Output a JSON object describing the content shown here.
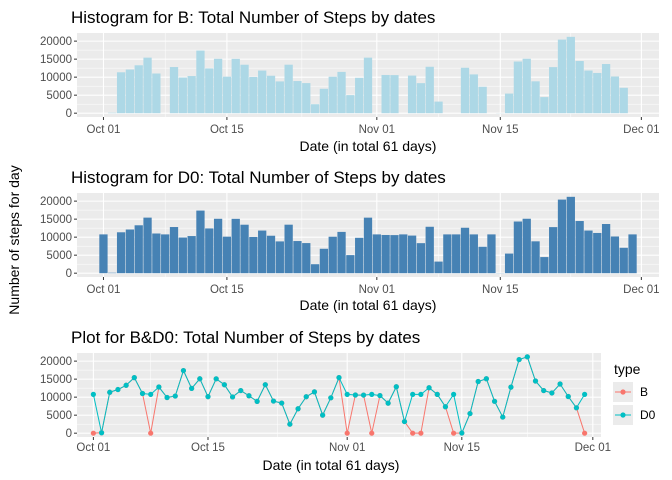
{
  "chart_data": [
    {
      "type": "bar",
      "title": "Histogram for B: Total Number of Steps by dates",
      "xlabel": "Date (in total 61 days)",
      "ylabel": "Number of steps for day",
      "bar_color": "#add8e6",
      "x": [
        "2012-10-01",
        "2012-10-02",
        "2012-10-03",
        "2012-10-04",
        "2012-10-05",
        "2012-10-06",
        "2012-10-07",
        "2012-10-08",
        "2012-10-09",
        "2012-10-10",
        "2012-10-11",
        "2012-10-12",
        "2012-10-13",
        "2012-10-14",
        "2012-10-15",
        "2012-10-16",
        "2012-10-17",
        "2012-10-18",
        "2012-10-19",
        "2012-10-20",
        "2012-10-21",
        "2012-10-22",
        "2012-10-23",
        "2012-10-24",
        "2012-10-25",
        "2012-10-26",
        "2012-10-27",
        "2012-10-28",
        "2012-10-29",
        "2012-10-30",
        "2012-10-31",
        "2012-11-01",
        "2012-11-02",
        "2012-11-03",
        "2012-11-04",
        "2012-11-05",
        "2012-11-06",
        "2012-11-07",
        "2012-11-08",
        "2012-11-09",
        "2012-11-10",
        "2012-11-11",
        "2012-11-12",
        "2012-11-13",
        "2012-11-14",
        "2012-11-15",
        "2012-11-16",
        "2012-11-17",
        "2012-11-18",
        "2012-11-19",
        "2012-11-20",
        "2012-11-21",
        "2012-11-22",
        "2012-11-23",
        "2012-11-24",
        "2012-11-25",
        "2012-11-26",
        "2012-11-27",
        "2012-11-28",
        "2012-11-29",
        "2012-11-30"
      ],
      "values": [
        0,
        126,
        11352,
        12116,
        13294,
        15420,
        11015,
        0,
        12811,
        9900,
        10304,
        17382,
        12426,
        15098,
        10139,
        15084,
        13452,
        10056,
        11829,
        10395,
        8821,
        13460,
        8918,
        8355,
        2492,
        6778,
        10119,
        11458,
        5018,
        9819,
        15414,
        0,
        10600,
        10571,
        0,
        10439,
        8334,
        12883,
        3219,
        0,
        0,
        12608,
        10765,
        7336,
        0,
        41,
        5441,
        14339,
        15110,
        8841,
        4472,
        12787,
        20427,
        21194,
        14478,
        11834,
        11162,
        13646,
        10183,
        7047,
        0
      ],
      "yticks": [
        0,
        5000,
        10000,
        15000,
        20000
      ],
      "xticks": [
        {
          "date": "2012-10-01",
          "label": "Oct 01"
        },
        {
          "date": "2012-10-15",
          "label": "Oct 15"
        },
        {
          "date": "2012-11-01",
          "label": "Nov 01"
        },
        {
          "date": "2012-11-15",
          "label": "Nov 15"
        },
        {
          "date": "2012-12-01",
          "label": "Dec 01"
        }
      ],
      "ylim": [
        0,
        21194
      ]
    },
    {
      "type": "bar",
      "title": "Histogram for D0: Total Number of Steps by dates",
      "xlabel": "Date (in total 61 days)",
      "ylabel": "Number of steps for day",
      "bar_color": "#4682b4",
      "x": [
        "2012-10-01",
        "2012-10-02",
        "2012-10-03",
        "2012-10-04",
        "2012-10-05",
        "2012-10-06",
        "2012-10-07",
        "2012-10-08",
        "2012-10-09",
        "2012-10-10",
        "2012-10-11",
        "2012-10-12",
        "2012-10-13",
        "2012-10-14",
        "2012-10-15",
        "2012-10-16",
        "2012-10-17",
        "2012-10-18",
        "2012-10-19",
        "2012-10-20",
        "2012-10-21",
        "2012-10-22",
        "2012-10-23",
        "2012-10-24",
        "2012-10-25",
        "2012-10-26",
        "2012-10-27",
        "2012-10-28",
        "2012-10-29",
        "2012-10-30",
        "2012-10-31",
        "2012-11-01",
        "2012-11-02",
        "2012-11-03",
        "2012-11-04",
        "2012-11-05",
        "2012-11-06",
        "2012-11-07",
        "2012-11-08",
        "2012-11-09",
        "2012-11-10",
        "2012-11-11",
        "2012-11-12",
        "2012-11-13",
        "2012-11-14",
        "2012-11-15",
        "2012-11-16",
        "2012-11-17",
        "2012-11-18",
        "2012-11-19",
        "2012-11-20",
        "2012-11-21",
        "2012-11-22",
        "2012-11-23",
        "2012-11-24",
        "2012-11-25",
        "2012-11-26",
        "2012-11-27",
        "2012-11-28",
        "2012-11-29",
        "2012-11-30"
      ],
      "values": [
        10766,
        126,
        11352,
        12116,
        13294,
        15420,
        11015,
        10766,
        12811,
        9900,
        10304,
        17382,
        12426,
        15098,
        10139,
        15084,
        13452,
        10056,
        11829,
        10395,
        8821,
        13460,
        8918,
        8355,
        2492,
        6778,
        10119,
        11458,
        5018,
        9819,
        15414,
        10766,
        10600,
        10571,
        10766,
        10439,
        8334,
        12883,
        3219,
        10766,
        10766,
        12608,
        10765,
        7336,
        10766,
        41,
        5441,
        14339,
        15110,
        8841,
        4472,
        12787,
        20427,
        21194,
        14478,
        11834,
        11162,
        13646,
        10183,
        7047,
        10766
      ],
      "yticks": [
        0,
        5000,
        10000,
        15000,
        20000
      ],
      "xticks": [
        {
          "date": "2012-10-01",
          "label": "Oct 01"
        },
        {
          "date": "2012-10-15",
          "label": "Oct 15"
        },
        {
          "date": "2012-11-01",
          "label": "Nov 01"
        },
        {
          "date": "2012-11-15",
          "label": "Nov 15"
        },
        {
          "date": "2012-12-01",
          "label": "Dec 01"
        }
      ],
      "ylim": [
        0,
        21194
      ]
    },
    {
      "type": "line",
      "title": "Plot for B&D0: Total Number of Steps by dates",
      "xlabel": "Date (in total 61 days)",
      "ylabel": "Number of steps for day",
      "legend": {
        "title": "type",
        "position": "right"
      },
      "x": [
        "2012-10-01",
        "2012-10-02",
        "2012-10-03",
        "2012-10-04",
        "2012-10-05",
        "2012-10-06",
        "2012-10-07",
        "2012-10-08",
        "2012-10-09",
        "2012-10-10",
        "2012-10-11",
        "2012-10-12",
        "2012-10-13",
        "2012-10-14",
        "2012-10-15",
        "2012-10-16",
        "2012-10-17",
        "2012-10-18",
        "2012-10-19",
        "2012-10-20",
        "2012-10-21",
        "2012-10-22",
        "2012-10-23",
        "2012-10-24",
        "2012-10-25",
        "2012-10-26",
        "2012-10-27",
        "2012-10-28",
        "2012-10-29",
        "2012-10-30",
        "2012-10-31",
        "2012-11-01",
        "2012-11-02",
        "2012-11-03",
        "2012-11-04",
        "2012-11-05",
        "2012-11-06",
        "2012-11-07",
        "2012-11-08",
        "2012-11-09",
        "2012-11-10",
        "2012-11-11",
        "2012-11-12",
        "2012-11-13",
        "2012-11-14",
        "2012-11-15",
        "2012-11-16",
        "2012-11-17",
        "2012-11-18",
        "2012-11-19",
        "2012-11-20",
        "2012-11-21",
        "2012-11-22",
        "2012-11-23",
        "2012-11-24",
        "2012-11-25",
        "2012-11-26",
        "2012-11-27",
        "2012-11-28",
        "2012-11-29",
        "2012-11-30"
      ],
      "series": [
        {
          "name": "B",
          "color": "#f8766d",
          "values": [
            0,
            126,
            11352,
            12116,
            13294,
            15420,
            11015,
            0,
            12811,
            9900,
            10304,
            17382,
            12426,
            15098,
            10139,
            15084,
            13452,
            10056,
            11829,
            10395,
            8821,
            13460,
            8918,
            8355,
            2492,
            6778,
            10119,
            11458,
            5018,
            9819,
            15414,
            0,
            10600,
            10571,
            0,
            10439,
            8334,
            12883,
            3219,
            0,
            0,
            12608,
            10765,
            7336,
            0,
            41,
            5441,
            14339,
            15110,
            8841,
            4472,
            12787,
            20427,
            21194,
            14478,
            11834,
            11162,
            13646,
            10183,
            7047,
            0
          ]
        },
        {
          "name": "D0",
          "color": "#00bfc4",
          "values": [
            10766,
            126,
            11352,
            12116,
            13294,
            15420,
            11015,
            10766,
            12811,
            9900,
            10304,
            17382,
            12426,
            15098,
            10139,
            15084,
            13452,
            10056,
            11829,
            10395,
            8821,
            13460,
            8918,
            8355,
            2492,
            6778,
            10119,
            11458,
            5018,
            9819,
            15414,
            10766,
            10600,
            10571,
            10766,
            10439,
            8334,
            12883,
            3219,
            10766,
            10766,
            12608,
            10765,
            7336,
            10766,
            41,
            5441,
            14339,
            15110,
            8841,
            4472,
            12787,
            20427,
            21194,
            14478,
            11834,
            11162,
            13646,
            10183,
            7047,
            10766
          ]
        }
      ],
      "yticks": [
        0,
        5000,
        10000,
        15000,
        20000
      ],
      "xticks": [
        {
          "date": "2012-10-01",
          "label": "Oct 01"
        },
        {
          "date": "2012-10-15",
          "label": "Oct 15"
        },
        {
          "date": "2012-11-01",
          "label": "Nov 01"
        },
        {
          "date": "2012-11-15",
          "label": "Nov 15"
        },
        {
          "date": "2012-12-01",
          "label": "Dec 01"
        }
      ],
      "ylim": [
        0,
        21194
      ]
    }
  ],
  "colors": {
    "panel_bg": "#ebebeb",
    "grid": "#ffffff"
  }
}
